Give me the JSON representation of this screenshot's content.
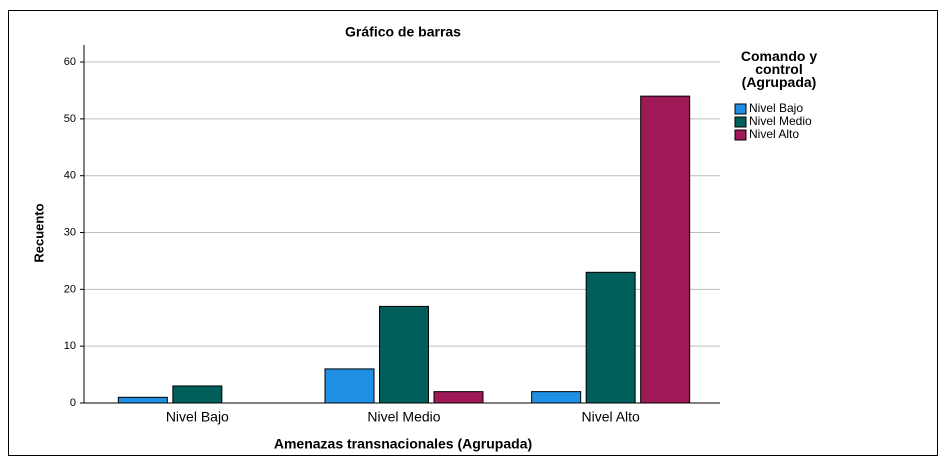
{
  "chart_data": {
    "type": "bar",
    "title": "Gráfico de barras",
    "x_label": "Amenazas transnacionales (Agrupada)",
    "y_label": "Recuento",
    "legend_title": "Comando y control (Agrupada)",
    "categories": [
      "Nivel Bajo",
      "Nivel Medio",
      "Nivel Alto"
    ],
    "series": [
      {
        "name": "Nivel Bajo",
        "color": "#1e8fe3",
        "values": [
          1,
          6,
          2
        ]
      },
      {
        "name": "Nivel Medio",
        "color": "#005f5b",
        "values": [
          3,
          17,
          23
        ]
      },
      {
        "name": "Nivel Alto",
        "color": "#9e1955",
        "values": [
          0,
          2,
          54
        ]
      }
    ],
    "ylim": [
      0,
      63
    ],
    "yticks": [
      0,
      10,
      20,
      30,
      40,
      50,
      60
    ],
    "grid": true,
    "legend": "right"
  }
}
